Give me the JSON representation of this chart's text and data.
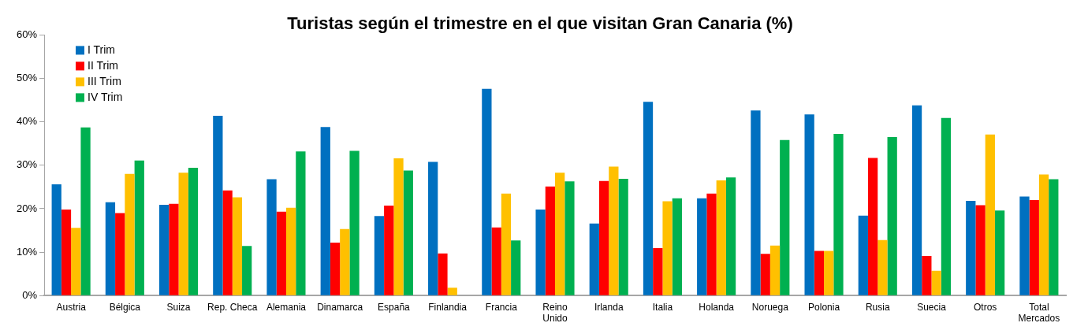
{
  "chart_data": {
    "type": "bar",
    "title": "Turistas según el trimestre en el que visitan Gran Canaria (%)",
    "categories": [
      "Austria",
      "Bélgica",
      "Suiza",
      "Rep. Checa",
      "Alemania",
      "Dinamarca",
      "España",
      "Finlandia",
      "Francia",
      "Reino Unido",
      "Irlanda",
      "Italia",
      "Holanda",
      "Noruega",
      "Polonia",
      "Rusia",
      "Suecia",
      "Otros",
      "Total Mercados"
    ],
    "series": [
      {
        "name": "I Trim",
        "color": "#0070c0",
        "values": [
          25.6,
          21.5,
          20.9,
          41.4,
          26.8,
          38.8,
          18.3,
          30.8,
          47.6,
          19.8,
          16.6,
          44.6,
          22.4,
          42.6,
          41.7,
          18.4,
          43.8,
          21.8,
          22.8
        ]
      },
      {
        "name": "II Trim",
        "color": "#ff0000",
        "values": [
          19.8,
          19.0,
          21.1,
          24.2,
          19.3,
          12.2,
          20.7,
          9.7,
          15.7,
          25.1,
          26.4,
          10.9,
          23.5,
          9.6,
          10.3,
          31.7,
          9.1,
          20.8,
          22.0
        ]
      },
      {
        "name": "III Trim",
        "color": "#ffc000",
        "values": [
          15.6,
          28.0,
          28.3,
          22.6,
          20.2,
          15.3,
          31.6,
          1.8,
          23.5,
          28.3,
          29.7,
          21.7,
          26.5,
          11.5,
          10.3,
          12.8,
          5.7,
          37.1,
          27.9
        ]
      },
      {
        "name": "IV Trim",
        "color": "#00b050",
        "values": [
          38.7,
          31.1,
          29.4,
          11.4,
          33.2,
          33.3,
          28.8,
          null,
          12.7,
          26.3,
          26.9,
          22.4,
          27.2,
          35.8,
          37.2,
          36.5,
          40.9,
          19.6,
          26.8
        ]
      }
    ],
    "ylim": [
      0,
      60
    ],
    "yticks": [
      {
        "value": 0,
        "label": "0%"
      },
      {
        "value": 10,
        "label": "10%"
      },
      {
        "value": 20,
        "label": "20%"
      },
      {
        "value": 30,
        "label": "30%"
      },
      {
        "value": 40,
        "label": "40%"
      },
      {
        "value": 50,
        "label": "50%"
      },
      {
        "value": 60,
        "label": "60%"
      }
    ],
    "grid": false,
    "legend": "top left"
  }
}
